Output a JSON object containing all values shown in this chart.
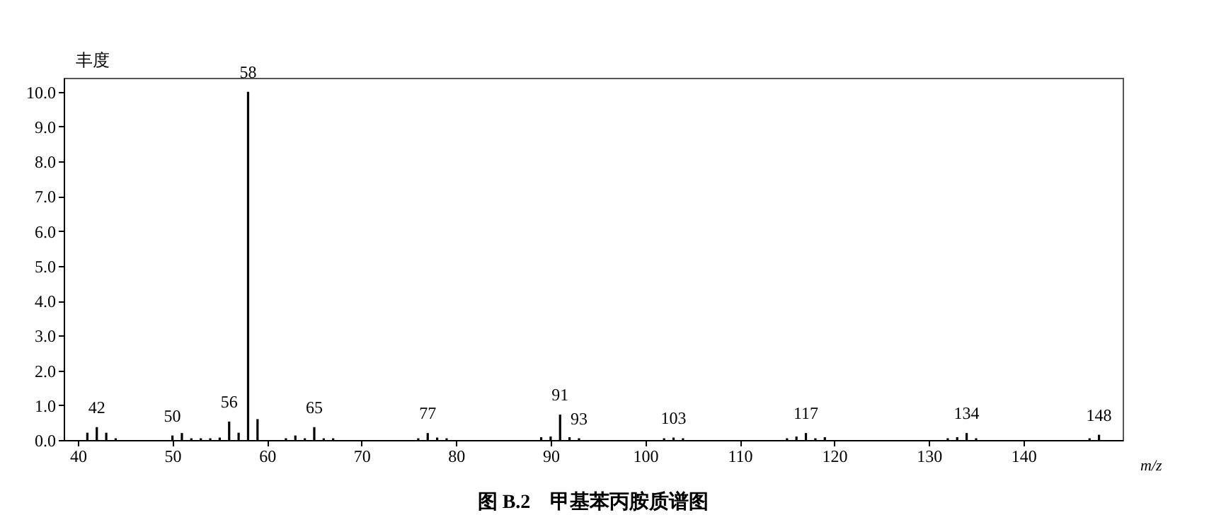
{
  "chart_data": {
    "type": "bar",
    "title": "图 B.2　甲基苯丙胺质谱图",
    "xlabel": "m/z",
    "ylabel": "丰度",
    "x": [
      41,
      42,
      43,
      44,
      50,
      51,
      52,
      53,
      54,
      55,
      56,
      57,
      58,
      59,
      62,
      63,
      64,
      65,
      66,
      67,
      76,
      77,
      78,
      79,
      89,
      90,
      91,
      92,
      93,
      102,
      103,
      104,
      115,
      116,
      117,
      118,
      119,
      132,
      133,
      134,
      135,
      147,
      148
    ],
    "values": [
      0.21,
      0.37,
      0.21,
      0.05,
      0.13,
      0.2,
      0.05,
      0.05,
      0.05,
      0.07,
      0.53,
      0.21,
      10.0,
      0.6,
      0.05,
      0.13,
      0.05,
      0.37,
      0.05,
      0.05,
      0.05,
      0.2,
      0.07,
      0.05,
      0.08,
      0.1,
      0.73,
      0.08,
      0.05,
      0.05,
      0.07,
      0.05,
      0.05,
      0.1,
      0.2,
      0.05,
      0.08,
      0.05,
      0.08,
      0.2,
      0.05,
      0.05,
      0.15
    ],
    "color": "#000000",
    "xlim": [
      38.5,
      150.5
    ],
    "xticks": [
      40,
      50,
      60,
      70,
      80,
      90,
      100,
      110,
      120,
      130,
      140
    ],
    "ylim": [
      0,
      10.4
    ],
    "yticks": [
      {
        "value": 0,
        "label": "0.0"
      },
      {
        "value": 1,
        "label": "1.0"
      },
      {
        "value": 2,
        "label": "2.0"
      },
      {
        "value": 3,
        "label": "3.0"
      },
      {
        "value": 4,
        "label": "4.0"
      },
      {
        "value": 5,
        "label": "5.0"
      },
      {
        "value": 6,
        "label": "6.0"
      },
      {
        "value": 7,
        "label": "7.0"
      },
      {
        "value": 8,
        "label": "8.0"
      },
      {
        "value": 9,
        "label": "9.0"
      },
      {
        "value": 10,
        "label": "10.0"
      }
    ],
    "grid": false,
    "annotations": [
      {
        "text": "42",
        "x": 42,
        "y": 0.37
      },
      {
        "text": "50",
        "x": 50,
        "y": 0.13
      },
      {
        "text": "56",
        "x": 56,
        "y": 0.53
      },
      {
        "text": "58",
        "x": 58,
        "y": 10.0
      },
      {
        "text": "65",
        "x": 65,
        "y": 0.37
      },
      {
        "text": "77",
        "x": 77,
        "y": 0.2
      },
      {
        "text": "91",
        "x": 91,
        "y": 0.73
      },
      {
        "text": "93",
        "x": 93,
        "y": 0.05
      },
      {
        "text": "103",
        "x": 103,
        "y": 0.07
      },
      {
        "text": "117",
        "x": 117,
        "y": 0.2
      },
      {
        "text": "134",
        "x": 134,
        "y": 0.2
      },
      {
        "text": "148",
        "x": 148,
        "y": 0.15
      }
    ]
  }
}
